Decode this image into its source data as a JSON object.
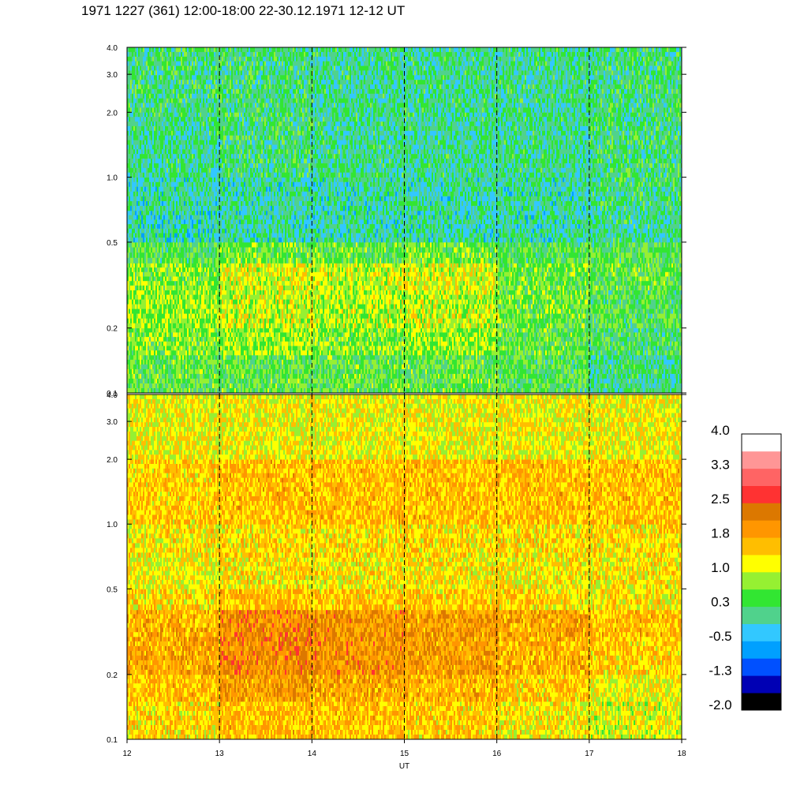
{
  "title": "1971 1227 (361) 12:00-18:00 22-30.12.1971  12-12 UT",
  "chart_data": [
    {
      "type": "heatmap",
      "panel": "top",
      "x_range": [
        12,
        18
      ],
      "x_ticks": [
        12,
        13,
        14,
        15,
        16,
        17,
        18
      ],
      "y_scale": "log",
      "y_range": [
        0.1,
        4.0
      ],
      "y_ticks": [
        0.1,
        0.2,
        0.5,
        1.0,
        2.0,
        3.0,
        4.0
      ],
      "y_tick_labels": [
        "0.1",
        "0.2",
        "0.5",
        "1.0",
        "2.0",
        "3.0",
        "4.0"
      ],
      "dashed_vertical_lines_at": [
        13,
        14,
        15,
        16,
        17
      ],
      "description_levels": {
        "y_bands": [
          0.1,
          0.15,
          0.2,
          0.3,
          0.4,
          0.5,
          0.7,
          1.0,
          2.0,
          4.0
        ],
        "x_bins": [
          12,
          13,
          14,
          15,
          16,
          17,
          18
        ],
        "values": [
          [
            0.5,
            0.5,
            0.5,
            0.5,
            0.4,
            0.1
          ],
          [
            0.7,
            0.8,
            0.7,
            0.8,
            0.5,
            0.3
          ],
          [
            0.8,
            1.0,
            0.9,
            1.0,
            0.6,
            0.4
          ],
          [
            0.7,
            1.1,
            1.0,
            1.1,
            0.6,
            0.5
          ],
          [
            0.4,
            0.6,
            0.5,
            0.6,
            0.4,
            0.4
          ],
          [
            -0.1,
            0.0,
            0.0,
            0.0,
            0.0,
            0.1
          ],
          [
            0.0,
            0.0,
            0.0,
            0.0,
            0.0,
            0.2
          ],
          [
            0.1,
            0.2,
            0.1,
            0.1,
            0.1,
            0.2
          ],
          [
            0.2,
            0.2,
            0.1,
            0.1,
            0.1,
            0.2
          ]
        ]
      }
    },
    {
      "type": "heatmap",
      "panel": "bottom",
      "x_range": [
        12,
        18
      ],
      "x_ticks": [
        12,
        13,
        14,
        15,
        16,
        17,
        18
      ],
      "x_tick_labels": [
        "12",
        "13",
        "14",
        "15",
        "16",
        "17",
        "18"
      ],
      "xlabel": "UT",
      "y_scale": "log",
      "y_range": [
        0.1,
        4.0
      ],
      "y_ticks": [
        0.1,
        0.2,
        0.5,
        1.0,
        2.0,
        3.0,
        4.0
      ],
      "y_tick_labels": [
        "0.1",
        "0.2",
        "0.5",
        "1.0",
        "2.0",
        "3.0",
        "4.0"
      ],
      "dashed_vertical_lines_at": [
        13,
        14,
        15,
        16,
        17
      ],
      "description_levels": {
        "y_bands": [
          0.1,
          0.15,
          0.2,
          0.3,
          0.4,
          0.5,
          0.7,
          1.0,
          2.0,
          4.0
        ],
        "x_bins": [
          12,
          13,
          14,
          15,
          16,
          17,
          18
        ],
        "values": [
          [
            1.4,
            1.6,
            1.6,
            1.5,
            1.3,
            1.1
          ],
          [
            1.6,
            1.9,
            1.8,
            1.7,
            1.5,
            1.2
          ],
          [
            1.8,
            2.1,
            2.0,
            1.9,
            1.7,
            1.5
          ],
          [
            1.7,
            2.1,
            2.0,
            1.9,
            1.8,
            1.6
          ],
          [
            1.4,
            1.6,
            1.5,
            1.5,
            1.4,
            1.3
          ],
          [
            1.2,
            1.3,
            1.3,
            1.3,
            1.3,
            1.3
          ],
          [
            1.3,
            1.4,
            1.4,
            1.4,
            1.4,
            1.4
          ],
          [
            1.5,
            1.6,
            1.6,
            1.6,
            1.6,
            1.6
          ],
          [
            1.2,
            1.2,
            1.2,
            1.2,
            1.2,
            1.2
          ]
        ]
      }
    }
  ],
  "colorbar": {
    "colors": [
      "#000000",
      "#0000b4",
      "#0050ff",
      "#00a0ff",
      "#32c8ff",
      "#50d28c",
      "#32e632",
      "#96f032",
      "#ffff00",
      "#ffbe00",
      "#ff9600",
      "#dc7800",
      "#ff3232",
      "#ff6464",
      "#ff9696",
      "#ffffff"
    ],
    "labels": [
      "4.0",
      "3.3",
      "2.5",
      "1.8",
      "1.0",
      "0.3",
      "-0.5",
      "-1.3",
      "-2.0"
    ],
    "range": [
      -2.0,
      4.0
    ]
  }
}
